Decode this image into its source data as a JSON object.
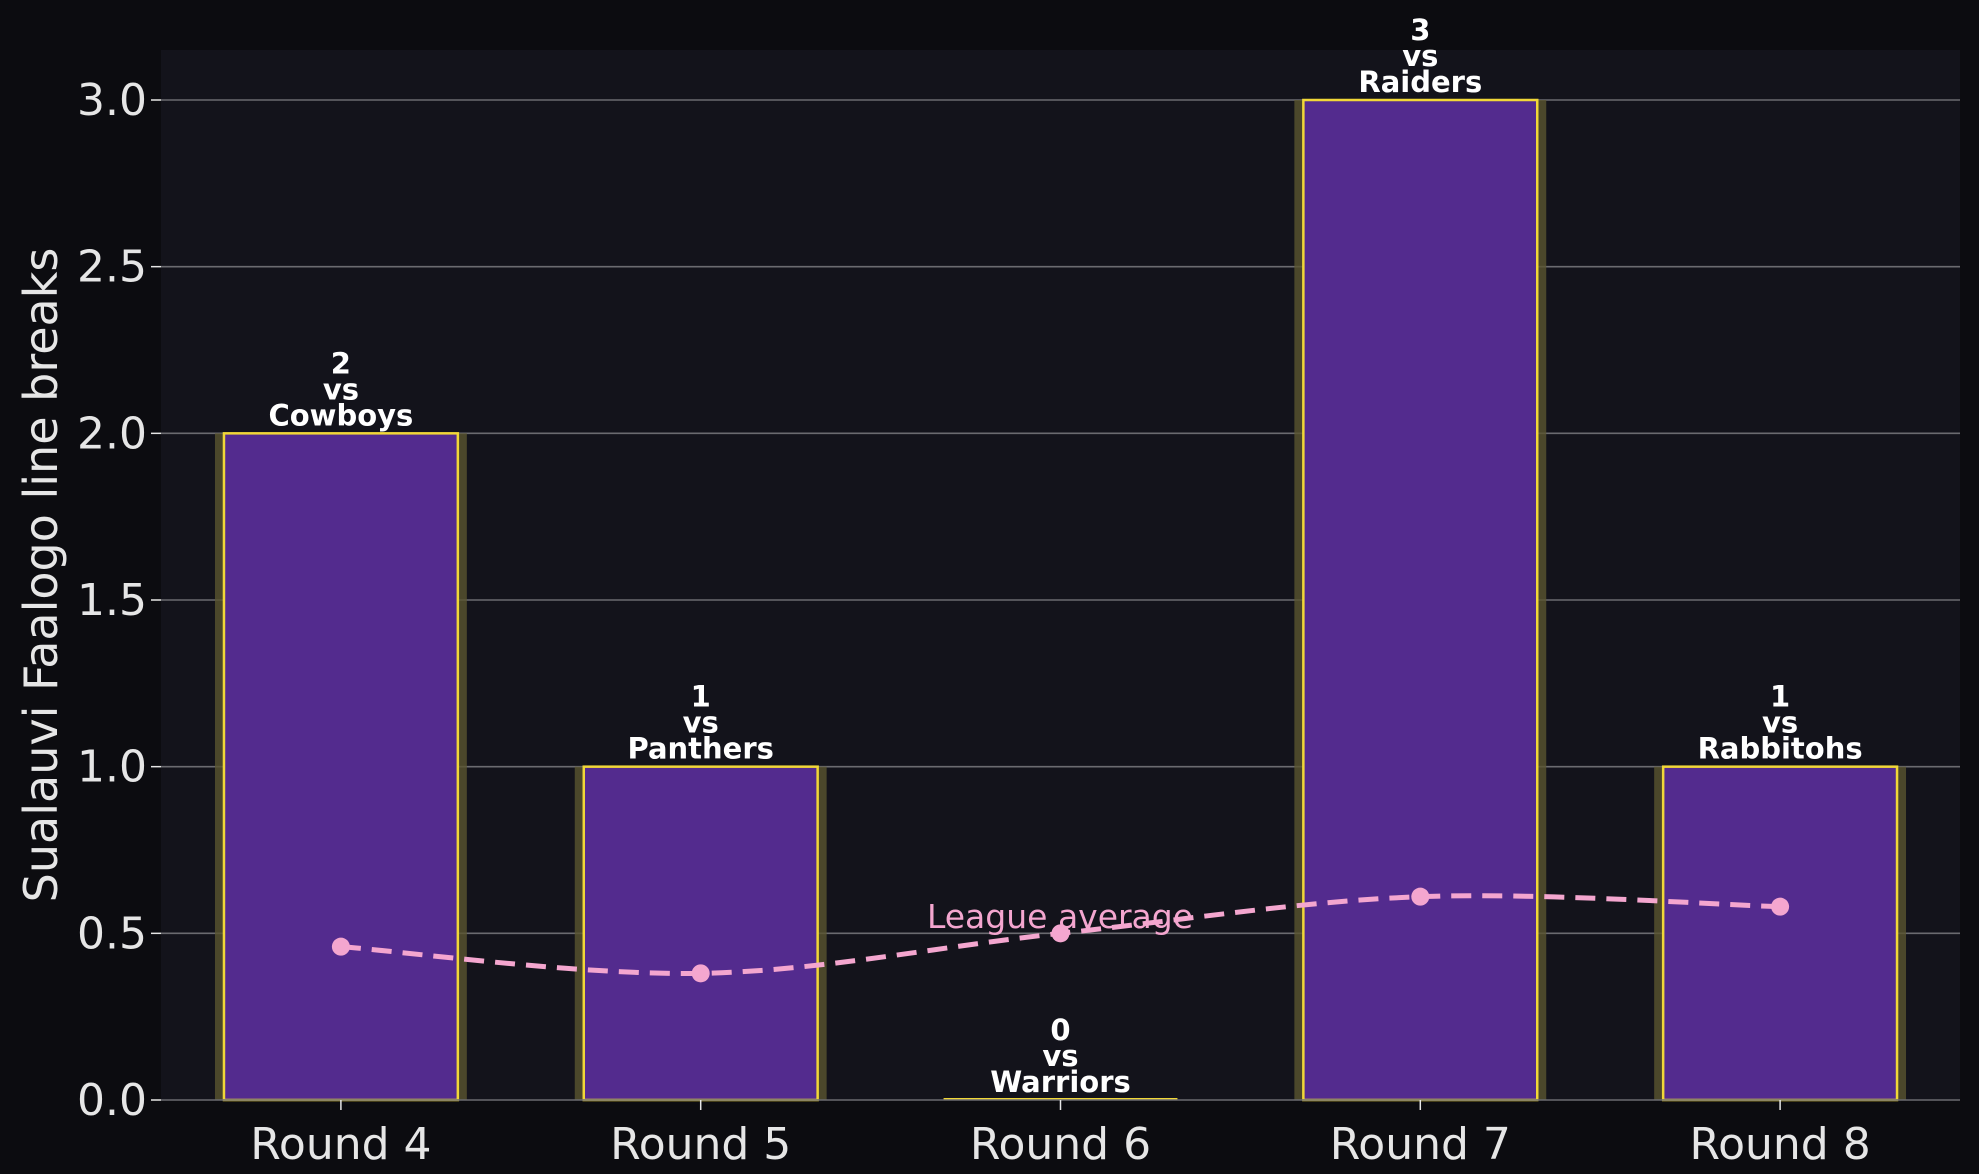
{
  "colors": {
    "page_background": "#0c0c10",
    "plot_background": "#13131b",
    "bar_fill": "#532b8e",
    "bar_edge": "#f1d738",
    "bar_glow": "#5a5530",
    "grid": "#6b6b70",
    "average_line": "#f4a6cf",
    "text": "#e6e6e6"
  },
  "chart_data": {
    "type": "bar",
    "title": "",
    "xlabel": "",
    "ylabel": "Sualauvi Faalogo line breaks",
    "ylim": [
      0,
      3.15
    ],
    "yticks": [
      "0.0",
      "0.5",
      "1.0",
      "1.5",
      "2.0",
      "2.5",
      "3.0"
    ],
    "grid": "horizontal",
    "categories": [
      "Round 4",
      "Round 5",
      "Round 6",
      "Round 7",
      "Round 8"
    ],
    "values": [
      2,
      1,
      0,
      3,
      1
    ],
    "bar_labels": [
      [
        "2",
        "vs",
        "Cowboys"
      ],
      [
        "1",
        "vs",
        "Panthers"
      ],
      [
        "0",
        "vs",
        "Warriors"
      ],
      [
        "3",
        "vs",
        "Raiders"
      ],
      [
        "1",
        "vs",
        "Rabbitohs"
      ]
    ],
    "overlay": {
      "type": "line",
      "style": "dashed",
      "label": "League average",
      "values": [
        0.46,
        0.38,
        0.5,
        0.61,
        0.58
      ]
    }
  }
}
